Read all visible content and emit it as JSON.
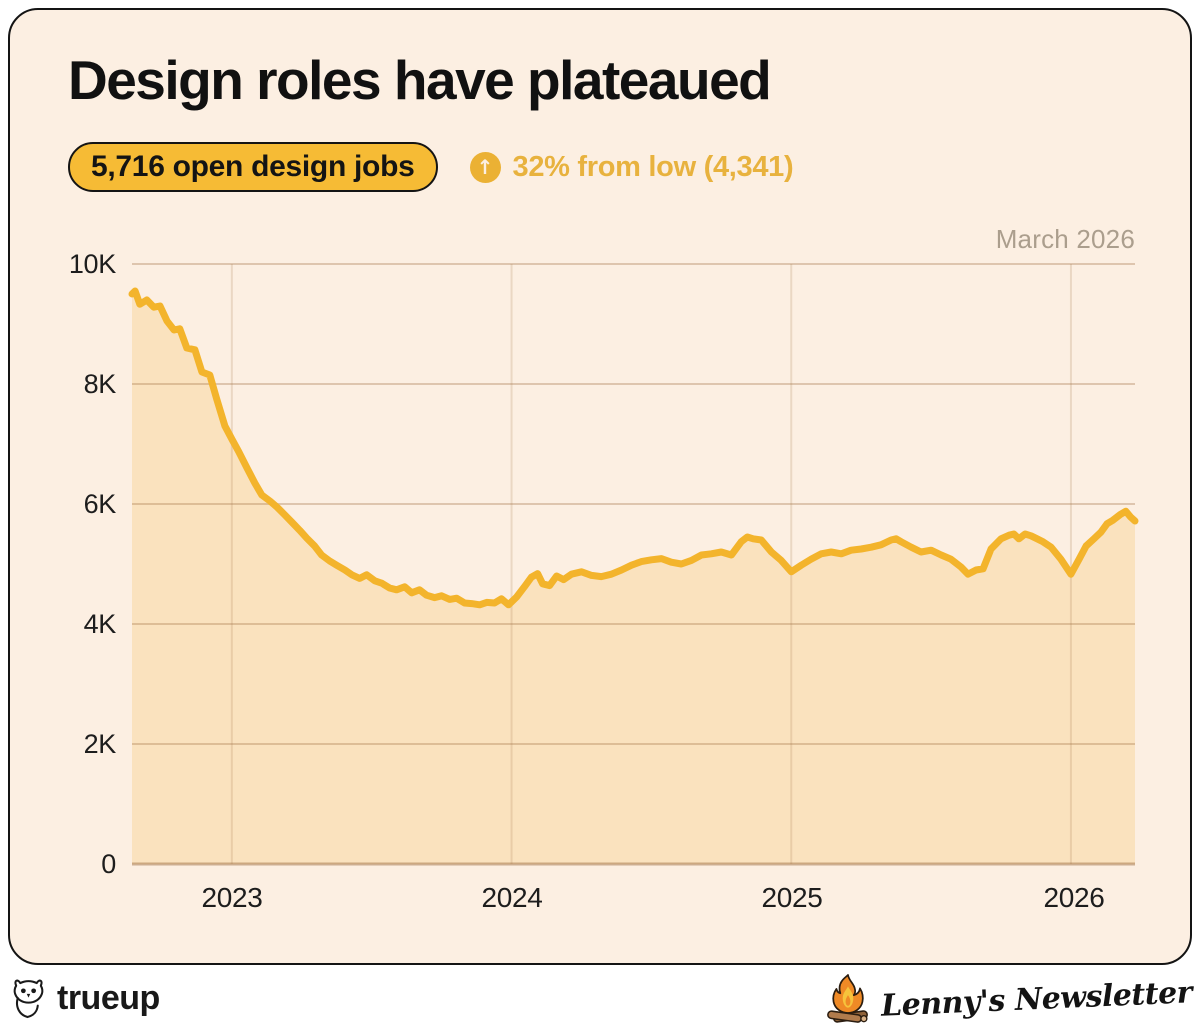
{
  "header": {
    "title": "Design roles have plateaued",
    "badge_label": "5,716 open design jobs",
    "delta_icon": "up-arrow-circle",
    "delta_label": "32% from low (4,341)"
  },
  "chart": {
    "as_of_label": "March 2026",
    "y_ticks": [
      {
        "label": "10K",
        "value": 10000
      },
      {
        "label": "8K",
        "value": 8000
      },
      {
        "label": "6K",
        "value": 6000
      },
      {
        "label": "4K",
        "value": 4000
      },
      {
        "label": "2K",
        "value": 2000
      },
      {
        "label": "0",
        "value": 0
      }
    ],
    "x_ticks": [
      {
        "label": "2023",
        "value": 2023
      },
      {
        "label": "2024",
        "value": 2024
      },
      {
        "label": "2025",
        "value": 2025
      },
      {
        "label": "2026",
        "value": 2026
      }
    ]
  },
  "chart_data": {
    "type": "area",
    "title": "Open design jobs over time",
    "xlabel": "",
    "ylabel": "Open design jobs",
    "x_domain": [
      2022.643,
      2026.229
    ],
    "y_domain": [
      0,
      10000
    ],
    "x_gridlines": [
      2023,
      2024,
      2025,
      2026
    ],
    "y_gridlines": [
      0,
      2000,
      4000,
      6000,
      8000,
      10000
    ],
    "grid": true,
    "legend": false,
    "current_value": 5716,
    "low_value": 4341,
    "pct_from_low": "32%",
    "as_of": "March 2026",
    "series": [
      {
        "name": "Open design jobs",
        "points": [
          [
            2022.643,
            9500
          ],
          [
            2022.654,
            9550
          ],
          [
            2022.671,
            9330
          ],
          [
            2022.696,
            9400
          ],
          [
            2022.721,
            9280
          ],
          [
            2022.743,
            9300
          ],
          [
            2022.768,
            9050
          ],
          [
            2022.793,
            8900
          ],
          [
            2022.814,
            8920
          ],
          [
            2022.839,
            8600
          ],
          [
            2022.868,
            8570
          ],
          [
            2022.893,
            8200
          ],
          [
            2022.921,
            8150
          ],
          [
            2022.946,
            7750
          ],
          [
            2022.975,
            7300
          ],
          [
            2023.0,
            7080
          ],
          [
            2023.025,
            6870
          ],
          [
            2023.054,
            6600
          ],
          [
            2023.082,
            6350
          ],
          [
            2023.107,
            6150
          ],
          [
            2023.136,
            6050
          ],
          [
            2023.161,
            5950
          ],
          [
            2023.189,
            5820
          ],
          [
            2023.214,
            5700
          ],
          [
            2023.243,
            5560
          ],
          [
            2023.268,
            5430
          ],
          [
            2023.296,
            5300
          ],
          [
            2023.321,
            5150
          ],
          [
            2023.35,
            5050
          ],
          [
            2023.375,
            4980
          ],
          [
            2023.404,
            4900
          ],
          [
            2023.429,
            4820
          ],
          [
            2023.457,
            4760
          ],
          [
            2023.482,
            4820
          ],
          [
            2023.511,
            4720
          ],
          [
            2023.536,
            4680
          ],
          [
            2023.564,
            4600
          ],
          [
            2023.589,
            4570
          ],
          [
            2023.618,
            4620
          ],
          [
            2023.643,
            4520
          ],
          [
            2023.671,
            4570
          ],
          [
            2023.696,
            4480
          ],
          [
            2023.725,
            4440
          ],
          [
            2023.75,
            4470
          ],
          [
            2023.779,
            4410
          ],
          [
            2023.804,
            4430
          ],
          [
            2023.832,
            4350
          ],
          [
            2023.857,
            4340
          ],
          [
            2023.886,
            4320
          ],
          [
            2023.911,
            4360
          ],
          [
            2023.939,
            4350
          ],
          [
            2023.964,
            4420
          ],
          [
            2023.989,
            4320
          ],
          [
            2024.018,
            4450
          ],
          [
            2024.046,
            4620
          ],
          [
            2024.071,
            4780
          ],
          [
            2024.093,
            4840
          ],
          [
            2024.111,
            4670
          ],
          [
            2024.136,
            4640
          ],
          [
            2024.161,
            4800
          ],
          [
            2024.186,
            4740
          ],
          [
            2024.214,
            4830
          ],
          [
            2024.25,
            4870
          ],
          [
            2024.286,
            4810
          ],
          [
            2024.321,
            4790
          ],
          [
            2024.357,
            4830
          ],
          [
            2024.393,
            4900
          ],
          [
            2024.429,
            4980
          ],
          [
            2024.464,
            5040
          ],
          [
            2024.5,
            5070
          ],
          [
            2024.536,
            5090
          ],
          [
            2024.571,
            5030
          ],
          [
            2024.607,
            5000
          ],
          [
            2024.643,
            5060
          ],
          [
            2024.679,
            5150
          ],
          [
            2024.714,
            5170
          ],
          [
            2024.75,
            5200
          ],
          [
            2024.786,
            5150
          ],
          [
            2024.821,
            5370
          ],
          [
            2024.843,
            5450
          ],
          [
            2024.864,
            5420
          ],
          [
            2024.893,
            5400
          ],
          [
            2024.929,
            5200
          ],
          [
            2024.964,
            5060
          ],
          [
            2025.0,
            4870
          ],
          [
            2025.036,
            4980
          ],
          [
            2025.071,
            5080
          ],
          [
            2025.107,
            5170
          ],
          [
            2025.143,
            5200
          ],
          [
            2025.179,
            5170
          ],
          [
            2025.214,
            5230
          ],
          [
            2025.25,
            5250
          ],
          [
            2025.286,
            5280
          ],
          [
            2025.321,
            5320
          ],
          [
            2025.357,
            5400
          ],
          [
            2025.375,
            5420
          ],
          [
            2025.393,
            5370
          ],
          [
            2025.429,
            5280
          ],
          [
            2025.464,
            5200
          ],
          [
            2025.5,
            5230
          ],
          [
            2025.536,
            5150
          ],
          [
            2025.571,
            5080
          ],
          [
            2025.607,
            4950
          ],
          [
            2025.632,
            4830
          ],
          [
            2025.661,
            4900
          ],
          [
            2025.686,
            4920
          ],
          [
            2025.714,
            5250
          ],
          [
            2025.75,
            5420
          ],
          [
            2025.779,
            5480
          ],
          [
            2025.796,
            5500
          ],
          [
            2025.814,
            5420
          ],
          [
            2025.836,
            5500
          ],
          [
            2025.857,
            5470
          ],
          [
            2025.879,
            5420
          ],
          [
            2025.9,
            5370
          ],
          [
            2025.929,
            5280
          ],
          [
            2025.964,
            5080
          ],
          [
            2026.0,
            4830
          ],
          [
            2026.029,
            5080
          ],
          [
            2026.054,
            5300
          ],
          [
            2026.082,
            5420
          ],
          [
            2026.107,
            5530
          ],
          [
            2026.129,
            5670
          ],
          [
            2026.15,
            5730
          ],
          [
            2026.175,
            5820
          ],
          [
            2026.196,
            5880
          ],
          [
            2026.214,
            5780
          ],
          [
            2026.229,
            5716
          ]
        ]
      }
    ]
  },
  "footer": {
    "left_brand": "trueup",
    "right_brand": "Lenny's Newsletter"
  },
  "colors": {
    "card_bg": "#FCEFE2",
    "card_border": "#141414",
    "line": "#F3B42C",
    "area_fill": "#FAE2BE",
    "grid_h": "rgba(166,121,77,0.35)",
    "grid_v": "rgba(166,121,77,0.20)",
    "grid_base": "rgba(166,121,77,0.55)",
    "badge_bg": "#F6BB35",
    "accent_text": "#E8B23E",
    "muted_text": "#AB9E8D",
    "title_text": "#111111"
  }
}
